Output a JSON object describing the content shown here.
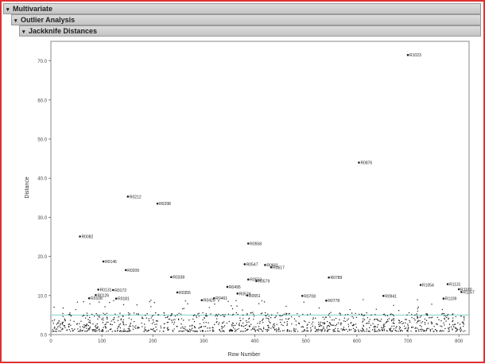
{
  "header": {
    "level1": "Multivariate",
    "level2": "Outlier Analysis",
    "level3": "Jackknife Distances"
  },
  "chart_data": {
    "type": "scatter",
    "xlabel": "Row Number",
    "ylabel": "Distance",
    "xlim": [
      0,
      820
    ],
    "ylim": [
      0,
      75
    ],
    "x_ticks": [
      "0",
      "100",
      "200",
      "300",
      "400",
      "500",
      "600",
      "700",
      "800"
    ],
    "y_ticks": [
      "0.0",
      "10.0",
      "20.0",
      "30.0",
      "40.0",
      "50.0",
      "60.0",
      "70.0"
    ],
    "reference_line": 5.0,
    "grid": false,
    "colors": {
      "points": "#202020",
      "reference_line": "#7fd0c8",
      "frame": "#e03030"
    },
    "labeled_points": [
      {
        "x": 700,
        "y": 71.5,
        "label": "R1023"
      },
      {
        "x": 604,
        "y": 44.0,
        "label": "R0876"
      },
      {
        "x": 151,
        "y": 35.3,
        "label": "R0212"
      },
      {
        "x": 209,
        "y": 33.5,
        "label": "R0298"
      },
      {
        "x": 57,
        "y": 25.1,
        "label": "R0082"
      },
      {
        "x": 387,
        "y": 23.3,
        "label": "R0558"
      },
      {
        "x": 103,
        "y": 18.7,
        "label": "R0146"
      },
      {
        "x": 380,
        "y": 18.0,
        "label": "R0547"
      },
      {
        "x": 420,
        "y": 17.8,
        "label": "R0601"
      },
      {
        "x": 432,
        "y": 17.2,
        "label": "R0617"
      },
      {
        "x": 147,
        "y": 16.5,
        "label": "R0209"
      },
      {
        "x": 236,
        "y": 14.7,
        "label": "R0338"
      },
      {
        "x": 545,
        "y": 14.6,
        "label": "R0789"
      },
      {
        "x": 387,
        "y": 14.1,
        "label": "R0553"
      },
      {
        "x": 403,
        "y": 13.7,
        "label": "R0579"
      },
      {
        "x": 725,
        "y": 12.7,
        "label": "R1054"
      },
      {
        "x": 778,
        "y": 12.9,
        "label": "R1131"
      },
      {
        "x": 346,
        "y": 12.2,
        "label": "R0495"
      },
      {
        "x": 93,
        "y": 11.5,
        "label": "R0131"
      },
      {
        "x": 122,
        "y": 11.4,
        "label": "R0172"
      },
      {
        "x": 800,
        "y": 11.6,
        "label": "R1160"
      },
      {
        "x": 805,
        "y": 10.9,
        "label": "R1167"
      },
      {
        "x": 248,
        "y": 10.8,
        "label": "R0355"
      },
      {
        "x": 366,
        "y": 10.5,
        "label": "R0524"
      },
      {
        "x": 385,
        "y": 10.0,
        "label": "R0551"
      },
      {
        "x": 88,
        "y": 10.1,
        "label": "R0126"
      },
      {
        "x": 493,
        "y": 9.9,
        "label": "R0708"
      },
      {
        "x": 652,
        "y": 9.9,
        "label": "R0941"
      },
      {
        "x": 75,
        "y": 9.3,
        "label": "R0108"
      },
      {
        "x": 128,
        "y": 9.2,
        "label": "R0181"
      },
      {
        "x": 320,
        "y": 9.3,
        "label": "R0461"
      },
      {
        "x": 296,
        "y": 8.8,
        "label": "R0425"
      },
      {
        "x": 540,
        "y": 8.7,
        "label": "R0778"
      },
      {
        "x": 770,
        "y": 9.2,
        "label": "R1109"
      }
    ]
  }
}
